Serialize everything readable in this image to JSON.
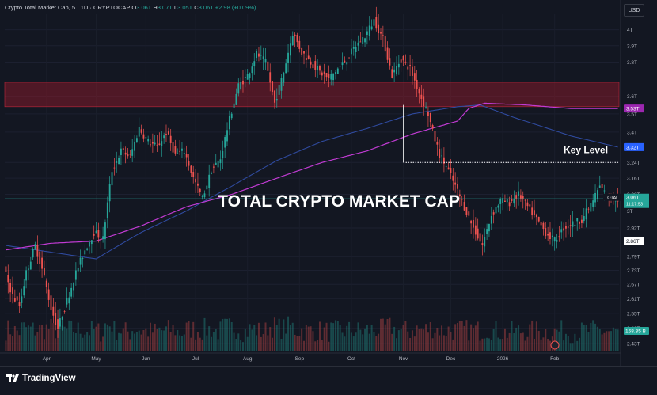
{
  "header": {
    "title_prefix": "Crypto Total Market Cap, 5 · 1D · CRYPTOCAP",
    "o_label": "O",
    "o_value": "3.06T",
    "h_label": "H",
    "h_value": "3.07T",
    "l_label": "L",
    "l_value": "3.05T",
    "c_label": "C",
    "c_value": "3.06T",
    "change": "+2.98 (+0.09%)"
  },
  "currency_button": "USD",
  "footer": {
    "brand": "TradingView"
  },
  "colors": {
    "background": "#131722",
    "up": "#26a69a",
    "down": "#ef5350",
    "sma_purple": "#c23bd4",
    "sma_blue": "#2f4a9e",
    "resistance_zone": "#8b1a2a"
  },
  "chart_data": {
    "type": "candlestick",
    "title": "TOTAL CRYPTO MARKET CAP",
    "key_level_label": "Key Level",
    "x_tick_labels": [
      "Apr",
      "May",
      "Jun",
      "Jul",
      "Aug",
      "Sep",
      "Oct",
      "Nov",
      "Dec",
      "2026",
      "Feb"
    ],
    "y_tick_labels": [
      "4T",
      "3.9T",
      "3.8T",
      "3.6T",
      "3.5T",
      "3.4T",
      "3.24T",
      "3.16T",
      "3.08T",
      "3T",
      "2.92T",
      "2.86T",
      "2.79T",
      "2.73T",
      "2.67T",
      "2.61T",
      "2.55T",
      "2.49T",
      "2.43T"
    ],
    "y_scale": "log",
    "price_path": [
      [
        0,
        2.74
      ],
      [
        4,
        2.62
      ],
      [
        7,
        2.58
      ],
      [
        10,
        2.72
      ],
      [
        14,
        2.84
      ],
      [
        18,
        2.7
      ],
      [
        21,
        2.57
      ],
      [
        24,
        2.49
      ],
      [
        28,
        2.6
      ],
      [
        32,
        2.72
      ],
      [
        36,
        2.82
      ],
      [
        40,
        2.9
      ],
      [
        44,
        2.87
      ],
      [
        48,
        3.2
      ],
      [
        52,
        3.3
      ],
      [
        56,
        3.27
      ],
      [
        60,
        3.42
      ],
      [
        64,
        3.35
      ],
      [
        68,
        3.32
      ],
      [
        72,
        3.4
      ],
      [
        76,
        3.28
      ],
      [
        80,
        3.3
      ],
      [
        84,
        3.16
      ],
      [
        88,
        3.06
      ],
      [
        92,
        3.2
      ],
      [
        96,
        3.26
      ],
      [
        100,
        3.47
      ],
      [
        104,
        3.66
      ],
      [
        108,
        3.72
      ],
      [
        112,
        3.85
      ],
      [
        116,
        3.8
      ],
      [
        120,
        3.56
      ],
      [
        124,
        3.74
      ],
      [
        128,
        3.98
      ],
      [
        132,
        3.86
      ],
      [
        136,
        3.8
      ],
      [
        140,
        3.74
      ],
      [
        144,
        3.7
      ],
      [
        148,
        3.76
      ],
      [
        152,
        3.82
      ],
      [
        156,
        3.9
      ],
      [
        160,
        3.96
      ],
      [
        164,
        4.06
      ],
      [
        168,
        3.94
      ],
      [
        172,
        3.72
      ],
      [
        176,
        3.82
      ],
      [
        180,
        3.76
      ],
      [
        184,
        3.62
      ],
      [
        188,
        3.5
      ],
      [
        190,
        3.4
      ],
      [
        193,
        3.28
      ],
      [
        196,
        3.22
      ],
      [
        200,
        3.12
      ],
      [
        204,
        3.02
      ],
      [
        208,
        2.92
      ],
      [
        212,
        2.84
      ],
      [
        216,
        2.98
      ],
      [
        220,
        3.05
      ],
      [
        224,
        3.04
      ],
      [
        228,
        3.08
      ],
      [
        232,
        3.02
      ],
      [
        236,
        2.96
      ],
      [
        240,
        2.9
      ],
      [
        244,
        2.86
      ],
      [
        248,
        2.92
      ],
      [
        252,
        2.94
      ],
      [
        256,
        2.96
      ],
      [
        260,
        3.03
      ],
      [
        264,
        3.12
      ],
      [
        268,
        3.06
      ],
      [
        271,
        3.06
      ]
    ],
    "sma_purple": [
      [
        0,
        2.82
      ],
      [
        20,
        2.85
      ],
      [
        40,
        2.86
      ],
      [
        60,
        2.93
      ],
      [
        80,
        3.02
      ],
      [
        100,
        3.08
      ],
      [
        120,
        3.16
      ],
      [
        140,
        3.24
      ],
      [
        160,
        3.3
      ],
      [
        180,
        3.39
      ],
      [
        200,
        3.46
      ],
      [
        205,
        3.53
      ],
      [
        212,
        3.56
      ],
      [
        230,
        3.55
      ],
      [
        250,
        3.53
      ],
      [
        271,
        3.53
      ]
    ],
    "sma_blue": [
      [
        0,
        2.84
      ],
      [
        20,
        2.81
      ],
      [
        40,
        2.78
      ],
      [
        60,
        2.9
      ],
      [
        80,
        3.0
      ],
      [
        100,
        3.12
      ],
      [
        120,
        3.25
      ],
      [
        140,
        3.35
      ],
      [
        160,
        3.42
      ],
      [
        180,
        3.5
      ],
      [
        200,
        3.54
      ],
      [
        210,
        3.55
      ],
      [
        225,
        3.48
      ],
      [
        250,
        3.38
      ],
      [
        271,
        3.32
      ]
    ],
    "resistance_zone": [
      3.54,
      3.68
    ],
    "key_level": 3.24,
    "support_level": 2.86,
    "volume_axis_label": "168.35 B",
    "price_labels": [
      {
        "value": 3.53,
        "text": "3.53T",
        "color": "#9c27b0"
      },
      {
        "value": 3.32,
        "text": "3.32T",
        "color": "#2962ff"
      },
      {
        "value": 3.06,
        "text": "3.06T",
        "name": "TOTAL",
        "countdown": "11:17:53",
        "color": "#26a69a"
      },
      {
        "value": 2.86,
        "text": "2.86T",
        "color": "#ffffff"
      }
    ]
  }
}
